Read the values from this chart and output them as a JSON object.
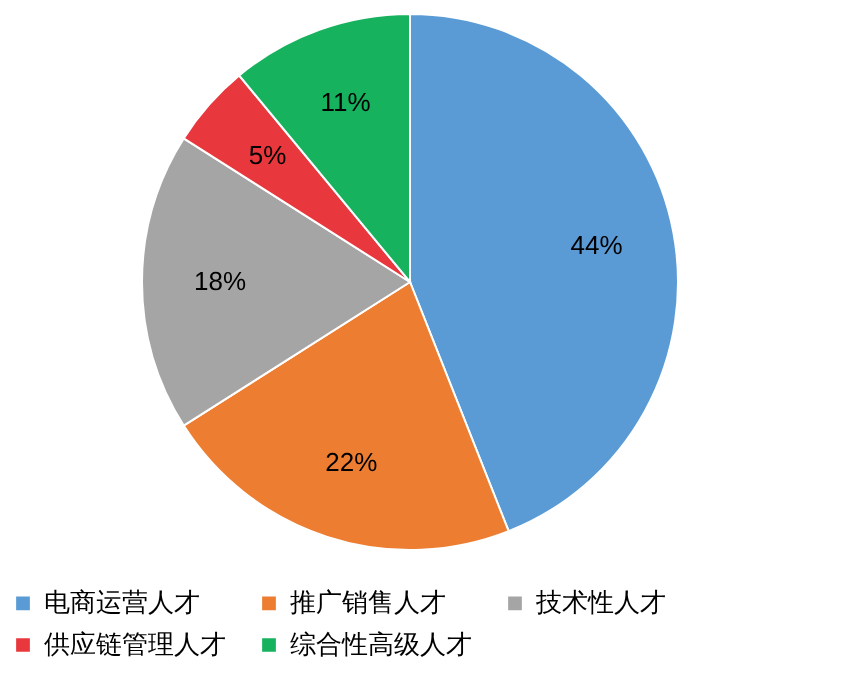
{
  "chart_data": {
    "type": "pie",
    "categories": [
      "电商运营人才",
      "推广销售人才",
      "技术性人才",
      "供应链管理人才",
      "综合性高级人才"
    ],
    "values": [
      44,
      22,
      18,
      5,
      11
    ],
    "value_labels": [
      "44%",
      "22%",
      "18%",
      "5%",
      "11%"
    ],
    "colors": [
      "#5b9bd5",
      "#ed7d31",
      "#a5a5a5",
      "#e8383d",
      "#16b25e"
    ],
    "legend": "bottom"
  }
}
